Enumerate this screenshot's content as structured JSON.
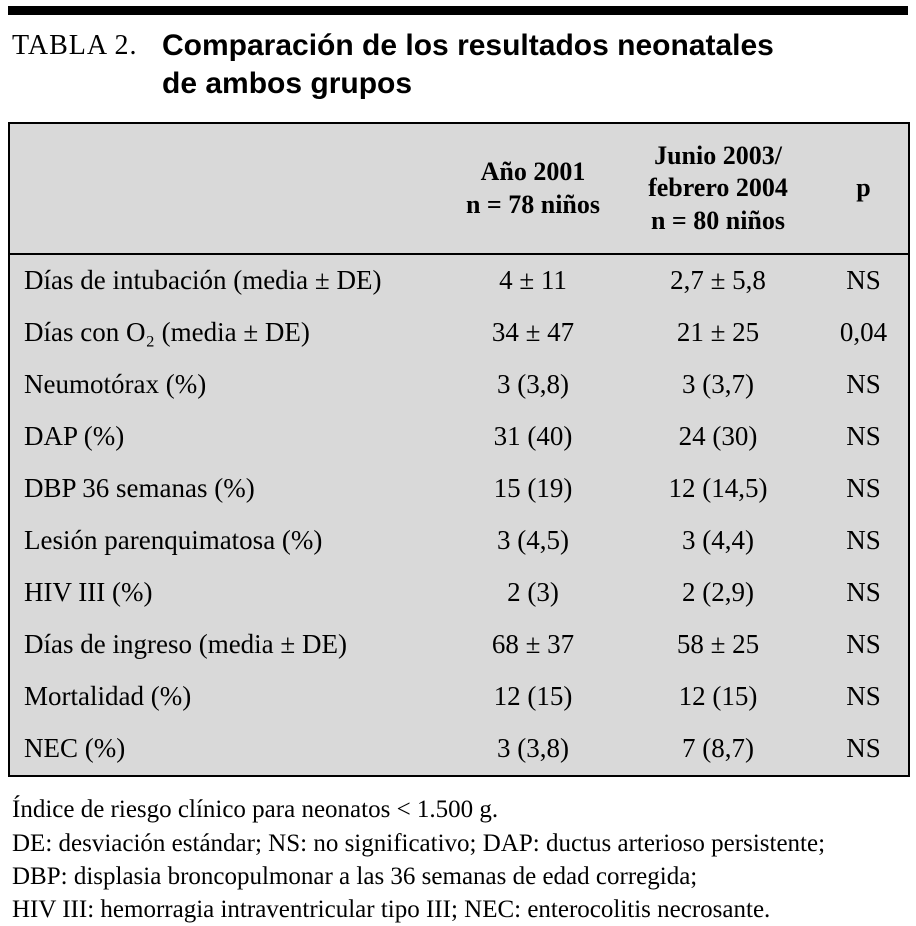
{
  "page": {
    "title_label": "TABLA 2.",
    "title_line1": "Comparación de los resultados neonatales",
    "title_line2": "de ambos grupos"
  },
  "table": {
    "header": {
      "col_item": "",
      "col_2001": "Año 2001\nn = 78 niños",
      "col_2003": "Junio 2003/\nfebrero 2004\nn = 80 niños",
      "col_p": "p"
    },
    "rows": [
      {
        "label": "Días de intubación (media ± DE)",
        "y2001": "4 ± 11",
        "y2003": "2,7 ± 5,8",
        "p": "NS"
      },
      {
        "label": "Días con O₂ (media ± DE)",
        "y2001": "34 ± 47",
        "y2003": "21 ± 25",
        "p": "0,04"
      },
      {
        "label": "Neumotórax (%)",
        "y2001": "3 (3,8)",
        "y2003": "3 (3,7)",
        "p": "NS"
      },
      {
        "label": "DAP (%)",
        "y2001": "31 (40)",
        "y2003": "24 (30)",
        "p": "NS"
      },
      {
        "label": "DBP 36 semanas (%)",
        "y2001": "15 (19)",
        "y2003": "12 (14,5)",
        "p": "NS"
      },
      {
        "label": "Lesión parenquimatosa (%)",
        "y2001": "3 (4,5)",
        "y2003": "3 (4,4)",
        "p": "NS"
      },
      {
        "label": "HIV III (%)",
        "y2001": "2 (3)",
        "y2003": "2 (2,9)",
        "p": "NS"
      },
      {
        "label": "Días de ingreso (media ± DE)",
        "y2001": "68 ± 37",
        "y2003": "58 ± 25",
        "p": "NS"
      },
      {
        "label": "Mortalidad (%)",
        "y2001": "12 (15)",
        "y2003": "12 (15)",
        "p": "NS"
      },
      {
        "label": "NEC (%)",
        "y2001": "3 (3,8)",
        "y2003": "7 (8,7)",
        "p": "NS"
      }
    ]
  },
  "footnotes": [
    "Índice de riesgo clínico para neonatos < 1.500 g.",
    "DE: desviación estándar; NS: no significativo; DAP: ductus arterioso persistente;",
    "DBP: displasia broncopulmonar a las 36 semanas de edad corregida;",
    "HIV III: hemorragia intraventricular tipo III; NEC: enterocolitis necrosante."
  ],
  "colors": {
    "table_bg": "#d9d9d9",
    "rule": "#000000"
  }
}
